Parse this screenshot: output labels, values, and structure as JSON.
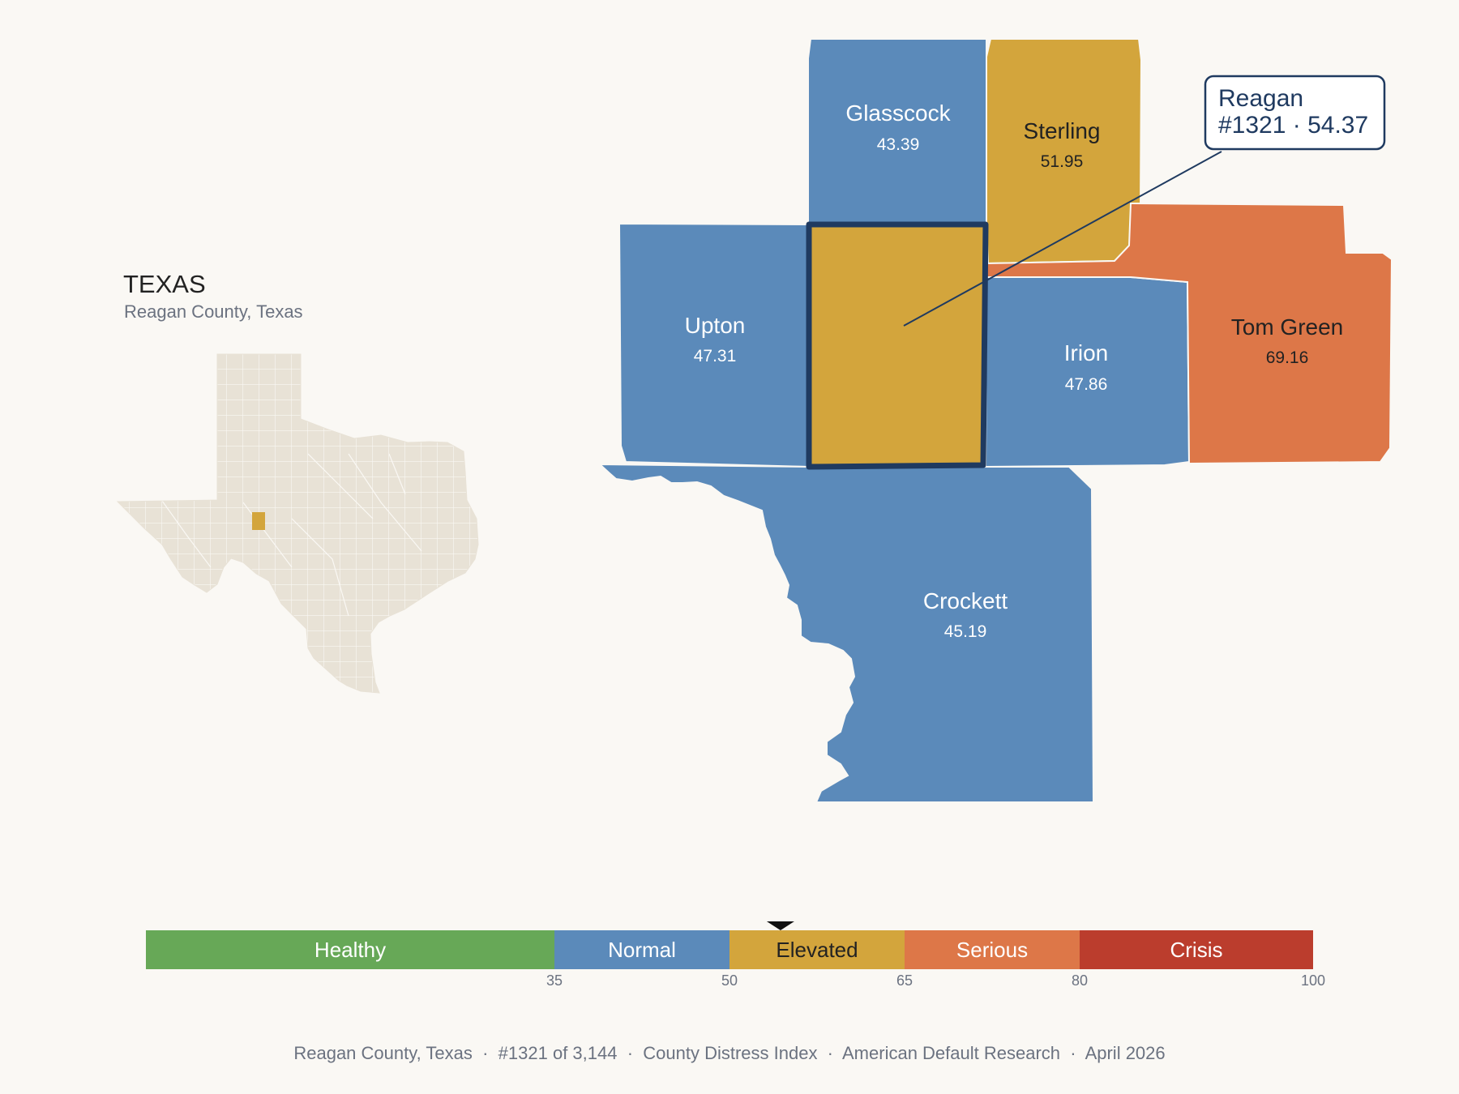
{
  "inset": {
    "state_title": "TEXAS",
    "state_subtitle": "Reagan County, Texas"
  },
  "colors": {
    "healthy": "#67a857",
    "normal": "#5b8aba",
    "elevated": "#d3a53c",
    "serious": "#dd7748",
    "crisis": "#bb3d2d",
    "inset_fill": "#e8e2d6",
    "outline": "#1f3a60"
  },
  "counties": {
    "glasscock": {
      "name": "Glasscock",
      "value": "43.39",
      "category": "Normal"
    },
    "sterling": {
      "name": "Sterling",
      "value": "51.95",
      "category": "Elevated"
    },
    "upton": {
      "name": "Upton",
      "value": "47.31",
      "category": "Normal"
    },
    "reagan": {
      "name": "Reagan",
      "value": "54.37",
      "category": "Elevated"
    },
    "irion": {
      "name": "Irion",
      "value": "47.86",
      "category": "Normal"
    },
    "tom_green": {
      "name": "Tom Green",
      "value": "69.16",
      "category": "Serious"
    },
    "crockett": {
      "name": "Crockett",
      "value": "45.19",
      "category": "Normal"
    }
  },
  "callout": {
    "line1": "Reagan",
    "line2": "#1321 · 54.37"
  },
  "legend": {
    "min": 0,
    "max": 100,
    "marker_value": 54.37,
    "bands": [
      {
        "label": "Healthy",
        "from": 0,
        "to": 35
      },
      {
        "label": "Normal",
        "from": 35,
        "to": 50
      },
      {
        "label": "Elevated",
        "from": 50,
        "to": 65
      },
      {
        "label": "Serious",
        "from": 65,
        "to": 80
      },
      {
        "label": "Crisis",
        "from": 80,
        "to": 100
      }
    ],
    "ticks": [
      "35",
      "50",
      "65",
      "80",
      "100"
    ]
  },
  "footer": {
    "text": "Reagan County, Texas  ·  #1321 of 3,144  ·  County Distress Index  ·  American Default Research  ·  April 2026"
  }
}
